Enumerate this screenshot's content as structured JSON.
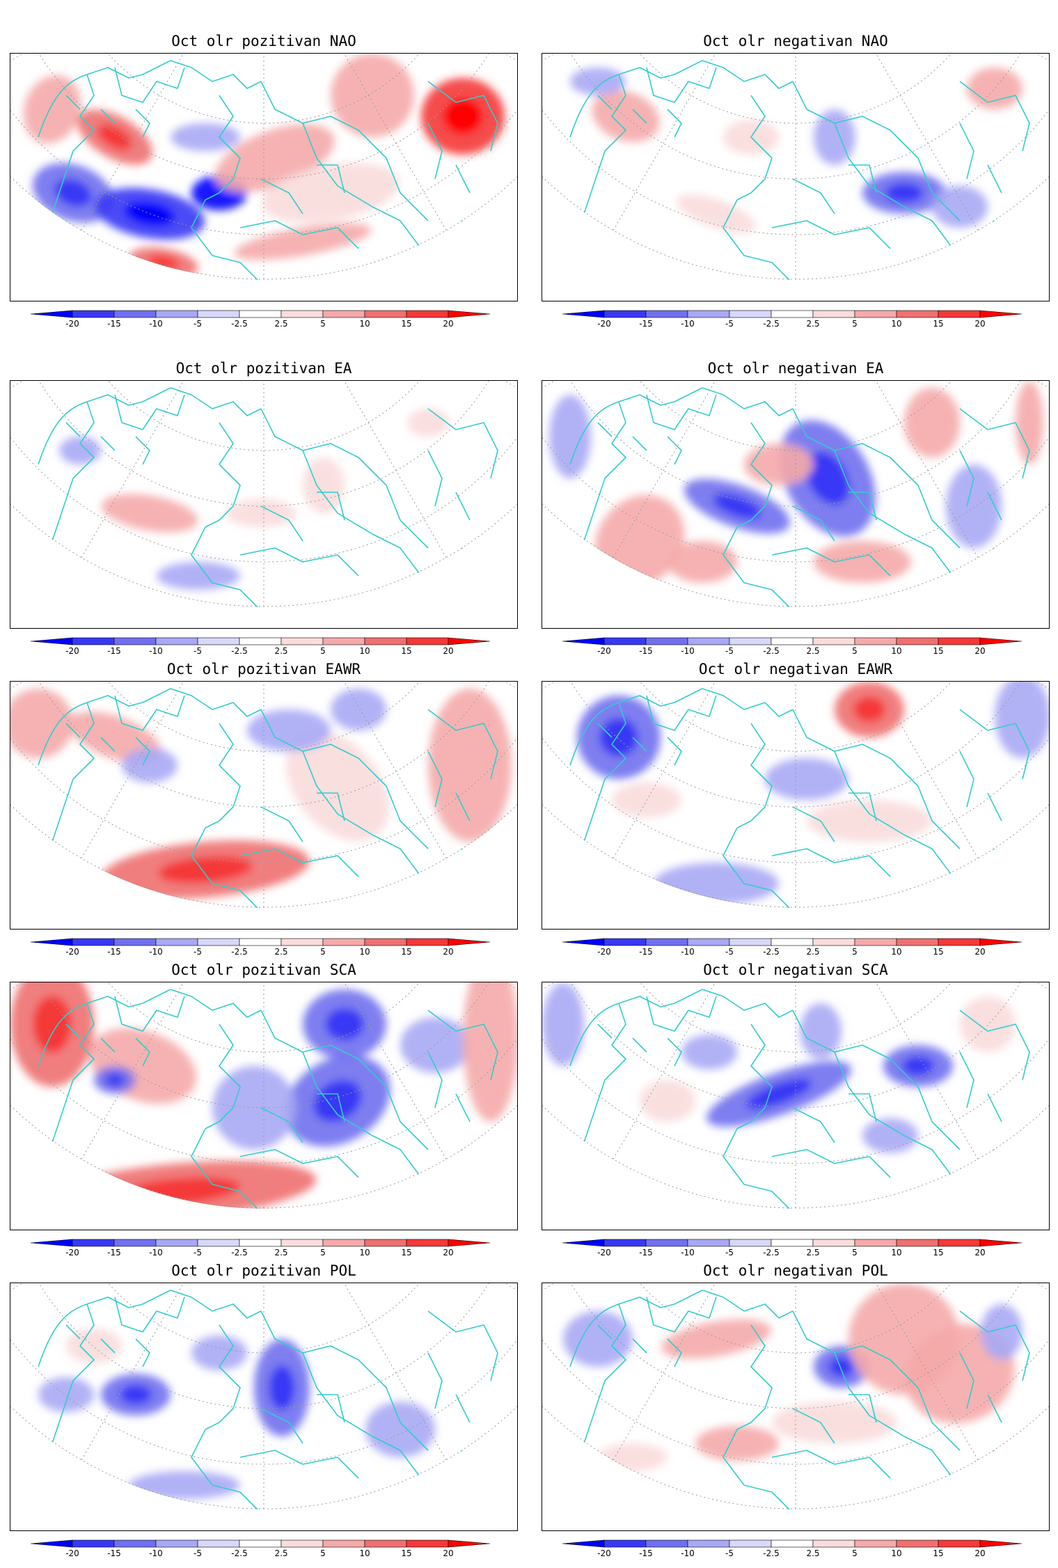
{
  "figure": {
    "panels": [
      {
        "id": "nao-pos",
        "title": "Oct olr pozitivan NAO",
        "phase": "positive",
        "pattern": "NAO"
      },
      {
        "id": "nao-neg",
        "title": "Oct olr negativan NAO",
        "phase": "negative",
        "pattern": "NAO"
      },
      {
        "id": "ea-pos",
        "title": "Oct olr pozitivan EA",
        "phase": "positive",
        "pattern": "EA"
      },
      {
        "id": "ea-neg",
        "title": "Oct olr negativan EA",
        "phase": "negative",
        "pattern": "EA"
      },
      {
        "id": "eawr-pos",
        "title": "Oct olr pozitivan EAWR",
        "phase": "positive",
        "pattern": "EAWR"
      },
      {
        "id": "eawr-neg",
        "title": "Oct olr negativan EAWR",
        "phase": "negative",
        "pattern": "EAWR"
      },
      {
        "id": "sca-pos",
        "title": "Oct olr pozitivan SCA",
        "phase": "positive",
        "pattern": "SCA"
      },
      {
        "id": "sca-neg",
        "title": "Oct olr negativan SCA",
        "phase": "negative",
        "pattern": "SCA"
      },
      {
        "id": "pol-pos",
        "title": "Oct olr pozitivan POL",
        "phase": "positive",
        "pattern": "POL"
      },
      {
        "id": "pol-neg",
        "title": "Oct olr negativan POL",
        "phase": "negative",
        "pattern": "POL"
      }
    ],
    "colorbar": {
      "labels": [
        "-20",
        "-15",
        "-10",
        "-5",
        "-2.5",
        "2.5",
        "5",
        "10",
        "15",
        "20"
      ],
      "colors": [
        "#0000ff",
        "#3838f5",
        "#7070f0",
        "#a8a8f5",
        "#d8d8fa",
        "#ffffff",
        "#fadcdc",
        "#f5aaaa",
        "#f07070",
        "#f53838",
        "#ff0000"
      ]
    },
    "coastline_color": "#33cccc",
    "grid_color": "#999999"
  }
}
